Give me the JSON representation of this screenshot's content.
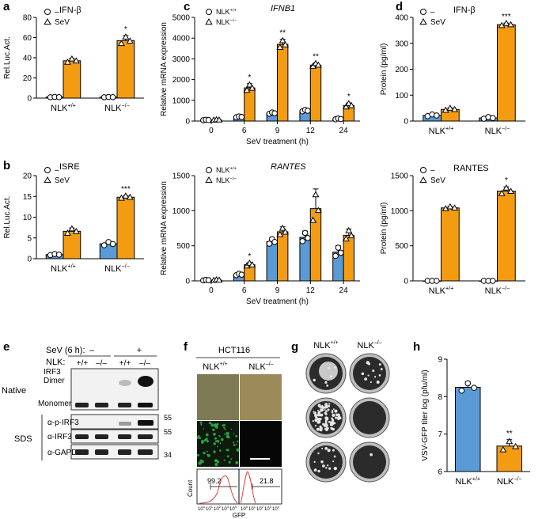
{
  "colors": {
    "blue": "#5b9bd5",
    "orange": "#f39c12",
    "black": "#000000",
    "green": "#31b24a",
    "flow": "#e04545",
    "blot_bg": "#f2f2f2",
    "plate": "#2b2b2b"
  },
  "chart_data": [
    {
      "id": "a",
      "panel_label": "a",
      "type": "bar",
      "title": "IFN-β",
      "ylabel": "Rel.Luc.Act.",
      "ylim": [
        0,
        80
      ],
      "yticks": [
        0,
        20,
        40,
        60,
        80
      ],
      "categories": [
        "NLK+/+",
        "NLK−/−"
      ],
      "category_labels": [
        {
          "base": "NLK",
          "sup": "+/+"
        },
        {
          "base": "NLK",
          "sup": "−/−"
        }
      ],
      "legend": [
        {
          "marker": "circle",
          "label": "–"
        },
        {
          "marker": "triangle",
          "label": "SeV"
        }
      ],
      "series": [
        {
          "name": "–",
          "color": "blue",
          "marker": "circle",
          "values": [
            1,
            1
          ],
          "err": [
            0.2,
            0.2
          ]
        },
        {
          "name": "SeV",
          "color": "orange",
          "marker": "triangle",
          "values": [
            37,
            57
          ],
          "err": [
            2.5,
            5
          ]
        }
      ],
      "sig": [
        {
          "cat": 1,
          "series": 1,
          "text": "*"
        }
      ]
    },
    {
      "id": "c",
      "panel_label": "c",
      "type": "bar",
      "title": "IFNB1",
      "title_italic": true,
      "ylabel": "Relative mRNA expression",
      "xlabel": "SeV treatment (h)",
      "ylim": [
        0,
        5000
      ],
      "yticks": [
        0,
        1000,
        2000,
        3000,
        4000,
        5000
      ],
      "categories": [
        "0",
        "6",
        "9",
        "12",
        "24"
      ],
      "legend": [
        {
          "marker": "circle",
          "label": "NLK",
          "sup": "+/+"
        },
        {
          "marker": "triangle",
          "label": "NLK",
          "sup": "−/−"
        }
      ],
      "series": [
        {
          "name": "NLK+/+",
          "color": "blue",
          "marker": "circle",
          "values": [
            50,
            200,
            380,
            500,
            100
          ],
          "err": [
            15,
            30,
            50,
            50,
            30
          ]
        },
        {
          "name": "NLK−/−",
          "color": "orange",
          "marker": "triangle",
          "values": [
            50,
            1600,
            3700,
            2700,
            750
          ],
          "err": [
            15,
            200,
            250,
            100,
            120
          ]
        }
      ],
      "sig": [
        {
          "cat": 1,
          "series": 1,
          "text": "*"
        },
        {
          "cat": 2,
          "series": 1,
          "text": "**"
        },
        {
          "cat": 3,
          "series": 1,
          "text": "**"
        },
        {
          "cat": 4,
          "series": 1,
          "text": "*"
        }
      ]
    },
    {
      "id": "d",
      "panel_label": "d",
      "type": "bar",
      "title": "IFN-β",
      "ylabel": "Protein (pg/ml)",
      "ylim": [
        0,
        400
      ],
      "yticks": [
        0,
        100,
        200,
        300,
        400
      ],
      "categories": [
        "NLK+/+",
        "NLK−/−"
      ],
      "category_labels": [
        {
          "base": "NLK",
          "sup": "+/+"
        },
        {
          "base": "NLK",
          "sup": "−/−"
        }
      ],
      "legend": [
        {
          "marker": "circle",
          "label": "–"
        },
        {
          "marker": "triangle",
          "label": "SeV"
        }
      ],
      "series": [
        {
          "name": "–",
          "color": "blue",
          "marker": "circle",
          "values": [
            22,
            12
          ],
          "err": [
            5,
            5
          ]
        },
        {
          "name": "SeV",
          "color": "orange",
          "marker": "triangle",
          "values": [
            45,
            372
          ],
          "err": [
            6,
            6
          ]
        }
      ],
      "sig": [
        {
          "cat": 1,
          "series": 1,
          "text": "***"
        }
      ]
    },
    {
      "id": "b",
      "panel_label": "b",
      "type": "bar",
      "title": "ISRE",
      "ylabel": "Rel.Luc.Act.",
      "ylim": [
        0,
        20
      ],
      "yticks": [
        0,
        5,
        10,
        15,
        20
      ],
      "categories": [
        "NLK+/+",
        "NLK−/−"
      ],
      "category_labels": [
        {
          "base": "NLK",
          "sup": "+/+"
        },
        {
          "base": "NLK",
          "sup": "−/−"
        }
      ],
      "legend": [
        {
          "marker": "circle",
          "label": "–"
        },
        {
          "marker": "triangle",
          "label": "SeV"
        }
      ],
      "series": [
        {
          "name": "–",
          "color": "blue",
          "marker": "circle",
          "values": [
            1,
            3.6
          ],
          "err": [
            0.2,
            0.6
          ]
        },
        {
          "name": "SeV",
          "color": "orange",
          "marker": "triangle",
          "values": [
            6.6,
            14.8
          ],
          "err": [
            0.8,
            0.4
          ]
        }
      ],
      "sig": [
        {
          "cat": 1,
          "series": 1,
          "text": "***"
        }
      ]
    },
    {
      "id": "c2",
      "panel_label": "",
      "type": "bar",
      "title": "RANTES",
      "title_italic": true,
      "ylabel": "Relative mRNA expression",
      "xlabel": "SeV treatment (h)",
      "ylim": [
        0,
        1500
      ],
      "yticks": [
        0,
        500,
        1000,
        1500
      ],
      "categories": [
        "0",
        "6",
        "9",
        "12",
        "24"
      ],
      "legend": [
        {
          "marker": "circle",
          "label": "NLK",
          "sup": "+/+"
        },
        {
          "marker": "triangle",
          "label": "NLK",
          "sup": "−/−"
        }
      ],
      "series": [
        {
          "name": "NLK+/+",
          "color": "blue",
          "marker": "circle",
          "values": [
            10,
            90,
            560,
            620,
            410
          ],
          "err": [
            5,
            15,
            50,
            90,
            90
          ]
        },
        {
          "name": "NLK−/−",
          "color": "orange",
          "marker": "triangle",
          "values": [
            10,
            230,
            700,
            1030,
            650
          ],
          "err": [
            5,
            30,
            70,
            280,
            90
          ]
        }
      ],
      "sig": [
        {
          "cat": 1,
          "series": 1,
          "text": "*"
        }
      ]
    },
    {
      "id": "d2",
      "panel_label": "",
      "type": "bar",
      "title": "RANTES",
      "ylabel": "Protein (pg/ml)",
      "ylim": [
        0,
        1500
      ],
      "yticks": [
        0,
        500,
        1000,
        1500
      ],
      "categories": [
        "NLK+/+",
        "NLK−/−"
      ],
      "category_labels": [
        {
          "base": "NLK",
          "sup": "+/+"
        },
        {
          "base": "NLK",
          "sup": "−/−"
        }
      ],
      "legend": [
        {
          "marker": "circle",
          "label": "–"
        },
        {
          "marker": "triangle",
          "label": "SeV"
        }
      ],
      "series": [
        {
          "name": "–",
          "color": "blue",
          "marker": "circle",
          "values": [
            0,
            0
          ],
          "err": [
            0,
            0
          ]
        },
        {
          "name": "SeV",
          "color": "orange",
          "marker": "triangle",
          "values": [
            1040,
            1280
          ],
          "err": [
            20,
            60
          ]
        }
      ],
      "sig": [
        {
          "cat": 1,
          "series": 1,
          "text": "*"
        }
      ]
    },
    {
      "id": "h",
      "panel_label": "h",
      "type": "bar",
      "title": "",
      "ylabel": "VSV-GFP titer log (pfu/ml)",
      "ylim": [
        6,
        9
      ],
      "yticks": [
        6,
        7,
        8,
        9
      ],
      "categories": [
        "NLK+/+",
        "NLK−/−"
      ],
      "category_labels": [
        {
          "base": "NLK",
          "sup": "+/+"
        },
        {
          "base": "NLK",
          "sup": "−/−"
        }
      ],
      "legend": [],
      "series": [
        {
          "name": "titer",
          "colors": [
            "blue",
            "orange"
          ],
          "markers": [
            "circle",
            "triangle"
          ],
          "values": [
            8.25,
            6.68
          ],
          "err": [
            0.15,
            0.17
          ]
        }
      ],
      "sig": [
        {
          "cat": 1,
          "series": 0,
          "text": "**"
        }
      ]
    }
  ],
  "panel_e": {
    "label": "e",
    "sev_header": "SeV (6 h):",
    "sev_minus": "–",
    "sev_plus": "+",
    "nlk_header": "NLK:",
    "genotypes": [
      "+/+",
      "–/–",
      "+/+",
      "–/–"
    ],
    "native_label": "Native",
    "sds_label": "SDS",
    "dimer_label_1": "IRF3",
    "dimer_label_2": "Dimer",
    "monomer_label": "Monomer",
    "blots": [
      "α-p-IRF3",
      "α-IRF3",
      "α-GAPDH"
    ],
    "mw": [
      "55",
      "55",
      "34"
    ]
  },
  "panel_f": {
    "label": "f",
    "cell_line": "HCT116",
    "col1": "NLK",
    "col1_sup": "+/+",
    "col2": "NLK",
    "col2_sup": "–/–",
    "flow_values": [
      "99.2",
      "21.8"
    ],
    "y_axis": "Count",
    "x_axis": "GFP",
    "ticks": [
      "10",
      "10",
      "10",
      "10",
      "10"
    ],
    "tick_exps": [
      "0",
      "1",
      "2",
      "3",
      "4"
    ]
  },
  "panel_g": {
    "label": "g",
    "col1": "NLK",
    "col1_sup": "+/+",
    "col2": "NLK",
    "col2_sup": "–/–"
  }
}
